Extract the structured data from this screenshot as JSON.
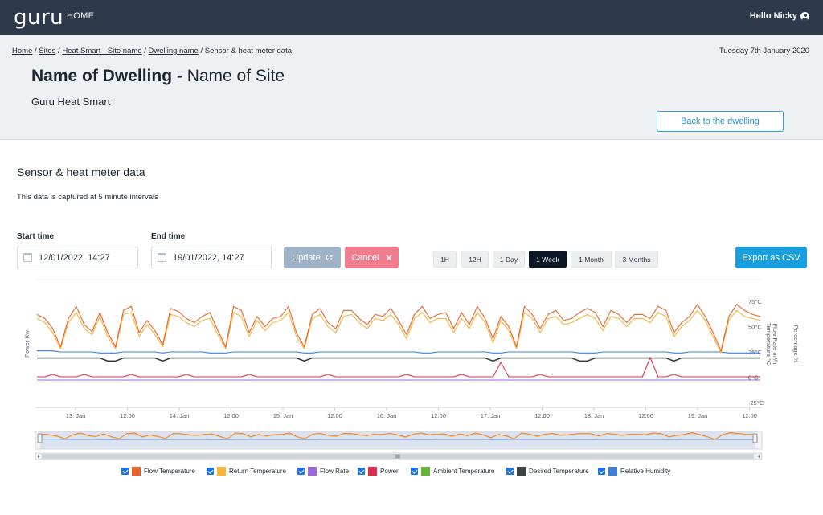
{
  "nav": {
    "logo": "guru",
    "home": "HOME",
    "greeting": "Hello Nicky"
  },
  "breadcrumb": {
    "home": "Home",
    "sites": "Sites",
    "site": "Heat Smart - Site name",
    "dwelling": "Dwelling name",
    "current": "Sensor & heat meter data",
    "sep": "/"
  },
  "header": {
    "date": "Tuesday 7th January 2020",
    "dwelling_name": "Name of Dwelling -",
    "site_name": "Name of Site",
    "subtitle": "Guru Heat Smart",
    "back_button": "Back to the dwelling"
  },
  "section": {
    "title": "Sensor & heat meter data",
    "note": "This data is captured at 5 minute intervals"
  },
  "controls": {
    "start_label": "Start time",
    "start_value": "12/01/2022, 14:27",
    "end_label": "End time",
    "end_value": "19/01/2022, 14:27",
    "update": "Update",
    "cancel": "Cancel",
    "ranges": [
      "1H",
      "12H",
      "1 Day",
      "1 Week",
      "1 Month",
      "3 Months"
    ],
    "active_range": "1 Week",
    "export": "Export as CSV"
  },
  "chart_data": {
    "type": "line",
    "title": "",
    "ylabel_left": "Power Kw",
    "ylabel_right": [
      "Temperature °C",
      "Flow Rate m³/h",
      "Percentage %"
    ],
    "temp_ticks": [
      "75°C",
      "50°C",
      "25°C",
      "0°C",
      "-25°C"
    ],
    "temp_range": [
      -25,
      75
    ],
    "x_ticks": [
      "13. Jan",
      "12:00",
      "14. Jan",
      "12:00",
      "15. Jan",
      "12:00",
      "16. Jan",
      "12:00",
      "17. Jan",
      "12:00",
      "18. Jan",
      "12:00",
      "19. Jan",
      "12:00"
    ],
    "x_range_hours": [
      0,
      168
    ],
    "series": [
      {
        "name": "Flow Temperature",
        "color": "#e8622c",
        "values": [
          62,
          58,
          48,
          30,
          58,
          70,
          52,
          45,
          64,
          44,
          30,
          66,
          70,
          44,
          56,
          46,
          32,
          68,
          65,
          58,
          54,
          60,
          64,
          46,
          30,
          70,
          66,
          44,
          60,
          50,
          58,
          60,
          70,
          44,
          30,
          62,
          68,
          54,
          48,
          66,
          66,
          58,
          52,
          62,
          60,
          68,
          56,
          42,
          62,
          70,
          58,
          62,
          64,
          48,
          64,
          52,
          70,
          58,
          38,
          60,
          50,
          30,
          70,
          62,
          48,
          62,
          66,
          56,
          58,
          64,
          68,
          64,
          50,
          66,
          62,
          54,
          62,
          62,
          58,
          70,
          66,
          44,
          54,
          60,
          72,
          60,
          44,
          26,
          60,
          72,
          66,
          62,
          60
        ]
      },
      {
        "name": "Return Temperature",
        "color": "#f5b43a",
        "values": [
          58,
          54,
          44,
          28,
          54,
          64,
          48,
          42,
          60,
          40,
          28,
          62,
          64,
          40,
          52,
          42,
          30,
          62,
          60,
          54,
          50,
          56,
          58,
          42,
          28,
          64,
          60,
          40,
          56,
          46,
          54,
          56,
          64,
          40,
          28,
          58,
          62,
          50,
          44,
          60,
          62,
          54,
          48,
          58,
          56,
          62,
          52,
          38,
          58,
          64,
          54,
          58,
          58,
          44,
          58,
          48,
          64,
          54,
          34,
          56,
          46,
          28,
          64,
          58,
          44,
          58,
          60,
          52,
          54,
          58,
          62,
          58,
          46,
          60,
          58,
          50,
          58,
          58,
          54,
          64,
          60,
          40,
          50,
          56,
          66,
          56,
          40,
          24,
          56,
          66,
          60,
          58,
          56
        ]
      },
      {
        "name": "Flow Rate",
        "color": "#9b6ad6",
        "values": [
          0,
          0,
          0,
          0,
          0,
          0,
          0,
          0,
          0,
          0,
          0,
          0,
          0,
          0,
          0,
          0,
          0,
          0,
          0,
          0,
          0,
          0,
          0,
          0,
          0,
          0,
          0,
          0,
          0,
          0,
          0,
          0,
          0,
          0,
          0,
          0,
          0,
          0,
          0,
          0,
          0,
          0,
          0,
          0,
          0,
          0,
          0,
          0,
          0,
          0,
          0,
          0,
          0,
          0,
          0,
          0,
          0,
          0,
          0,
          0,
          0,
          0,
          0,
          0,
          0,
          0,
          0,
          0,
          0,
          0,
          0,
          0,
          0,
          0,
          0,
          0,
          0,
          0,
          0,
          0,
          0,
          0,
          0,
          0,
          0,
          0,
          0,
          0,
          0,
          0,
          0,
          0,
          0
        ]
      },
      {
        "name": "Power",
        "color": "#d9304f",
        "values": [
          1,
          1,
          2,
          1,
          1,
          1,
          2,
          1,
          1,
          1,
          1,
          1,
          2,
          1,
          1,
          1,
          1,
          1,
          1,
          2,
          1,
          1,
          1,
          1,
          1,
          1,
          1,
          2,
          1,
          1,
          1,
          1,
          1,
          1,
          1,
          1,
          1,
          2,
          1,
          1,
          1,
          1,
          1,
          1,
          1,
          1,
          1,
          2,
          1,
          1,
          1,
          1,
          1,
          1,
          2,
          1,
          1,
          1,
          1,
          7,
          1,
          1,
          1,
          1,
          2,
          1,
          1,
          1,
          1,
          1,
          1,
          1,
          1,
          1,
          1,
          1,
          1,
          1,
          9,
          1,
          1,
          2,
          1,
          1,
          1,
          1,
          1,
          1,
          1,
          1,
          1,
          1,
          1
        ]
      },
      {
        "name": "Ambient Temperature",
        "color": "#67b43c",
        "values": [
          19,
          19,
          19,
          19,
          19,
          19,
          19,
          19,
          19,
          16,
          16,
          19,
          19,
          19,
          19,
          19,
          16,
          19,
          19,
          19,
          19,
          19,
          19,
          19,
          19,
          19,
          19,
          19,
          19,
          19,
          19,
          19,
          19,
          19,
          16,
          19,
          19,
          19,
          19,
          19,
          19,
          19,
          19,
          19,
          19,
          19,
          19,
          19,
          19,
          19,
          19,
          19,
          19,
          19,
          19,
          19,
          19,
          19,
          16,
          19,
          19,
          19,
          19,
          19,
          19,
          19,
          19,
          19,
          19,
          16,
          16,
          19,
          19,
          19,
          19,
          19,
          19,
          19,
          19,
          19,
          19,
          16,
          19,
          19,
          19,
          19,
          19,
          19,
          19,
          19,
          19,
          19,
          19
        ]
      },
      {
        "name": "Desired Temperature",
        "color": "#2f353b",
        "values": [
          19,
          19,
          19,
          19,
          19,
          19,
          19,
          19,
          19,
          16,
          16,
          19,
          19,
          19,
          19,
          19,
          16,
          19,
          19,
          19,
          19,
          19,
          19,
          19,
          19,
          19,
          19,
          19,
          19,
          19,
          19,
          19,
          19,
          19,
          16,
          19,
          19,
          19,
          19,
          19,
          19,
          19,
          19,
          19,
          19,
          19,
          19,
          19,
          19,
          19,
          19,
          19,
          19,
          19,
          19,
          19,
          19,
          19,
          16,
          19,
          19,
          19,
          19,
          19,
          19,
          19,
          19,
          19,
          19,
          16,
          16,
          19,
          19,
          19,
          19,
          19,
          19,
          19,
          19,
          19,
          19,
          16,
          19,
          19,
          19,
          19,
          19,
          19,
          19,
          19,
          19,
          19,
          19
        ]
      },
      {
        "name": "Relative Humidity",
        "color": "#3d7fd9",
        "values": [
          26,
          26,
          26,
          25,
          25,
          25,
          25,
          25,
          24,
          24,
          24,
          25,
          25,
          25,
          25,
          25,
          24,
          25,
          25,
          25,
          25,
          25,
          24,
          24,
          24,
          25,
          25,
          25,
          25,
          25,
          25,
          25,
          25,
          25,
          24,
          24,
          25,
          25,
          25,
          25,
          25,
          25,
          25,
          25,
          25,
          25,
          25,
          25,
          25,
          24,
          24,
          25,
          25,
          25,
          25,
          25,
          25,
          25,
          24,
          24,
          25,
          25,
          25,
          25,
          25,
          25,
          25,
          25,
          25,
          24,
          24,
          24,
          25,
          25,
          25,
          25,
          25,
          25,
          25,
          25,
          25,
          24,
          24,
          25,
          25,
          25,
          25,
          25,
          24,
          24,
          24,
          24,
          24
        ]
      }
    ],
    "legend": [
      {
        "name": "Flow Temperature",
        "color": "#e8622c"
      },
      {
        "name": "Return Temperature",
        "color": "#f5b43a"
      },
      {
        "name": "Flow Rate",
        "color": "#9b6ad6"
      },
      {
        "name": "Power",
        "color": "#d9304f"
      },
      {
        "name": "Ambient Temperature",
        "color": "#67b43c"
      },
      {
        "name": "Desired Temperature",
        "color": "#3d4247"
      },
      {
        "name": "Relative Humidity",
        "color": "#3d7fd9"
      }
    ]
  }
}
